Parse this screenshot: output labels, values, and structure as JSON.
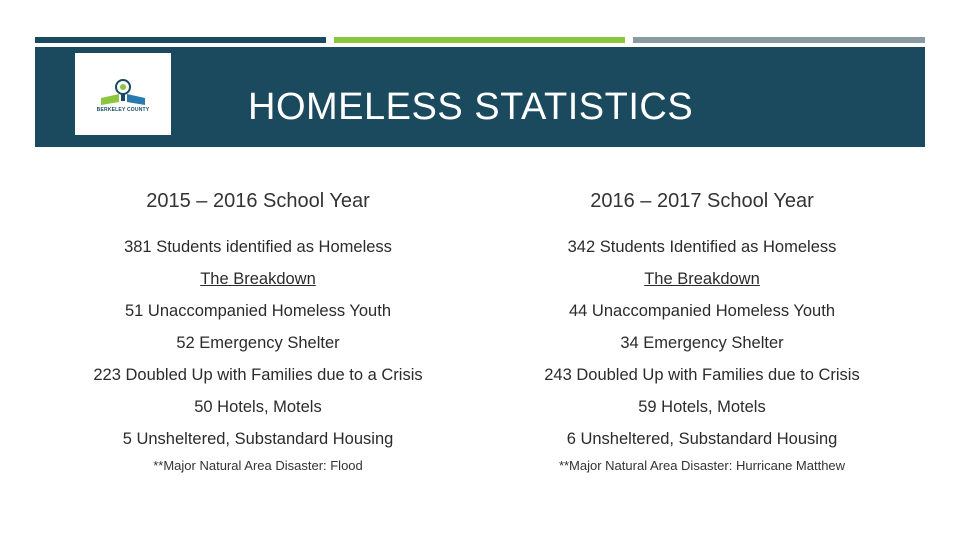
{
  "header": {
    "title": "HOMELESS STATISTICS",
    "logo_text": "BERKELEY COUNTY"
  },
  "left": {
    "heading": "2015 – 2016 School Year",
    "total": "381 Students identified as Homeless",
    "breakdown_label": "The Breakdown",
    "items": [
      "51 Unaccompanied Homeless Youth",
      "52 Emergency Shelter",
      "223 Doubled Up with Families due to a Crisis",
      "50 Hotels, Motels",
      "5 Unsheltered, Substandard Housing"
    ],
    "note": "**Major Natural Area Disaster:  Flood"
  },
  "right": {
    "heading": "2016 – 2017 School Year",
    "total": "342 Students Identified as Homeless",
    "breakdown_label": "The Breakdown",
    "items": [
      "44 Unaccompanied Homeless Youth",
      "34 Emergency Shelter",
      "243 Doubled Up with Families due to Crisis",
      "59 Hotels, Motels",
      "6 Unsheltered, Substandard Housing"
    ],
    "note": "**Major Natural Area Disaster:  Hurricane Matthew"
  },
  "colors": {
    "banner": "#1b4a5e",
    "accent_green": "#8cc63f",
    "accent_gray": "#8a9aa1"
  }
}
